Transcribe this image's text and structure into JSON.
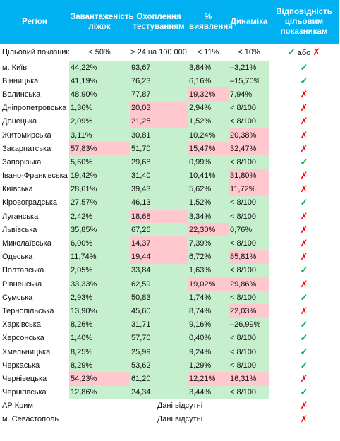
{
  "headers": [
    "Регіон",
    "Завантаженість ліжок",
    "Охоплення тестуванням",
    "% виявлення",
    "Динаміка",
    "Відповідність цільовим показникам"
  ],
  "target": {
    "label": "Цільовий показник",
    "beds": "< 50%",
    "testing": "> 24 на 100 000",
    "detection": "< 11%",
    "dynamics": "< 10%",
    "compliance_yes": "✓",
    "compliance_word": "або",
    "compliance_no": "✗"
  },
  "rows": [
    {
      "region": "м. Київ",
      "beds": "44,22%",
      "testing": "93,67",
      "detection": "3,84%",
      "dynamics": "–3,21%",
      "mark": "✓",
      "c": [
        "g",
        "g",
        "g",
        "g"
      ]
    },
    {
      "region": "Вінницька",
      "beds": "41,19%",
      "testing": "76,23",
      "detection": "6,16%",
      "dynamics": "–15,70%",
      "mark": "✓",
      "c": [
        "g",
        "g",
        "g",
        "g"
      ]
    },
    {
      "region": "Волинська",
      "beds": "48,90%",
      "testing": "77,87",
      "detection": "19,32%",
      "dynamics": "7,94%",
      "mark": "✗",
      "c": [
        "g",
        "g",
        "r",
        "g"
      ]
    },
    {
      "region": "Дніпропетровська",
      "beds": "1,36%",
      "testing": "20,03",
      "detection": "2,94%",
      "dynamics": "< 8/100",
      "mark": "✗",
      "c": [
        "g",
        "r",
        "g",
        "g"
      ]
    },
    {
      "region": "Донецька",
      "beds": "2,09%",
      "testing": "21,25",
      "detection": "1,52%",
      "dynamics": "< 8/100",
      "mark": "✗",
      "c": [
        "g",
        "r",
        "g",
        "g"
      ]
    },
    {
      "region": "Житомирська",
      "beds": "3,11%",
      "testing": "30,81",
      "detection": "10,24%",
      "dynamics": "20,38%",
      "mark": "✗",
      "c": [
        "g",
        "g",
        "g",
        "r"
      ]
    },
    {
      "region": "Закарпатська",
      "beds": "57,83%",
      "testing": "51,70",
      "detection": "15,47%",
      "dynamics": "32,47%",
      "mark": "✗",
      "c": [
        "r",
        "g",
        "r",
        "r"
      ]
    },
    {
      "region": "Запорізька",
      "beds": "5,60%",
      "testing": "29,68",
      "detection": "0,99%",
      "dynamics": "< 8/100",
      "mark": "✓",
      "c": [
        "g",
        "g",
        "g",
        "g"
      ]
    },
    {
      "region": "Івано-Франківська",
      "beds": "19,42%",
      "testing": "31,40",
      "detection": "10,41%",
      "dynamics": "31,80%",
      "mark": "✗",
      "c": [
        "g",
        "g",
        "g",
        "r"
      ]
    },
    {
      "region": "Київська",
      "beds": "28,61%",
      "testing": "39,43",
      "detection": "5,62%",
      "dynamics": "11,72%",
      "mark": "✗",
      "c": [
        "g",
        "g",
        "g",
        "r"
      ]
    },
    {
      "region": "Кіровоградська",
      "beds": "27,57%",
      "testing": "46,13",
      "detection": "1,52%",
      "dynamics": "< 8/100",
      "mark": "✓",
      "c": [
        "g",
        "g",
        "g",
        "g"
      ]
    },
    {
      "region": "Луганська",
      "beds": "2,42%",
      "testing": "18,68",
      "detection": "3,34%",
      "dynamics": "< 8/100",
      "mark": "✗",
      "c": [
        "g",
        "r",
        "g",
        "g"
      ]
    },
    {
      "region": "Львівська",
      "beds": "35,85%",
      "testing": "67,26",
      "detection": "22,30%",
      "dynamics": "0,76%",
      "mark": "✗",
      "c": [
        "g",
        "g",
        "r",
        "g"
      ]
    },
    {
      "region": "Миколаївська",
      "beds": "6,00%",
      "testing": "14,37",
      "detection": "7,39%",
      "dynamics": "< 8/100",
      "mark": "✗",
      "c": [
        "g",
        "r",
        "g",
        "g"
      ]
    },
    {
      "region": "Одеська",
      "beds": "11,74%",
      "testing": "19,44",
      "detection": "6,72%",
      "dynamics": "85,81%",
      "mark": "✗",
      "c": [
        "g",
        "r",
        "g",
        "r"
      ]
    },
    {
      "region": "Полтавська",
      "beds": "2,05%",
      "testing": "33,84",
      "detection": "1,63%",
      "dynamics": "< 8/100",
      "mark": "✓",
      "c": [
        "g",
        "g",
        "g",
        "g"
      ]
    },
    {
      "region": "Рівненська",
      "beds": "33,33%",
      "testing": "62,59",
      "detection": "19,02%",
      "dynamics": "29,86%",
      "mark": "✗",
      "c": [
        "g",
        "g",
        "r",
        "r"
      ]
    },
    {
      "region": "Сумська",
      "beds": "2,93%",
      "testing": "50,83",
      "detection": "1,74%",
      "dynamics": "< 8/100",
      "mark": "✓",
      "c": [
        "g",
        "g",
        "g",
        "g"
      ]
    },
    {
      "region": "Тернопільська",
      "beds": "13,90%",
      "testing": "45,60",
      "detection": "8,74%",
      "dynamics": "22,03%",
      "mark": "✗",
      "c": [
        "g",
        "g",
        "g",
        "r"
      ]
    },
    {
      "region": "Харківська",
      "beds": "8,26%",
      "testing": "31,71",
      "detection": "9,16%",
      "dynamics": "–26,99%",
      "mark": "✓",
      "c": [
        "g",
        "g",
        "g",
        "g"
      ]
    },
    {
      "region": "Херсонська",
      "beds": "1,40%",
      "testing": "57,70",
      "detection": "0,40%",
      "dynamics": "< 8/100",
      "mark": "✓",
      "c": [
        "g",
        "g",
        "g",
        "g"
      ]
    },
    {
      "region": "Хмельницька",
      "beds": "8,25%",
      "testing": "25,99",
      "detection": "9,24%",
      "dynamics": "< 8/100",
      "mark": "✓",
      "c": [
        "g",
        "g",
        "g",
        "g"
      ]
    },
    {
      "region": "Черкаська",
      "beds": "8,29%",
      "testing": "53,62",
      "detection": "1,29%",
      "dynamics": "< 8/100",
      "mark": "✓",
      "c": [
        "g",
        "g",
        "g",
        "g"
      ]
    },
    {
      "region": "Чернівецька",
      "beds": "54,23%",
      "testing": "61,20",
      "detection": "12,21%",
      "dynamics": "16,31%",
      "mark": "✗",
      "c": [
        "r",
        "g",
        "r",
        "r"
      ]
    },
    {
      "region": "Чернігівська",
      "beds": "12,86%",
      "testing": "24,34",
      "detection": "3,44%",
      "dynamics": "< 8/100",
      "mark": "✓",
      "c": [
        "g",
        "g",
        "g",
        "g"
      ]
    }
  ],
  "nodata_rows": [
    {
      "region": "АР Крим",
      "text": "Дані відсутні",
      "mark": "✗"
    },
    {
      "region": "м. Севастополь",
      "text": "Дані відсутні",
      "mark": "✗"
    }
  ],
  "colors": {
    "header_bg": "#00b0f0",
    "good_bg": "#c6efce",
    "bad_bg": "#ffc7ce",
    "check": "#00b050",
    "cross": "#ff0000"
  }
}
